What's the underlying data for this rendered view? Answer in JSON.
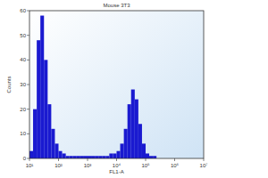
{
  "chart_data": {
    "type": "histogram",
    "title": "Mouse 3T3",
    "x_label": "FL1-A",
    "y_label": "Counts",
    "bins": [
      10,
      13.3,
      17.8,
      23.7,
      31.6,
      42.2,
      56.2,
      75,
      100,
      133,
      178,
      237,
      316,
      422,
      562,
      750,
      1000,
      1330,
      1780,
      2370,
      3160,
      4220,
      5620,
      7500,
      10000,
      13300,
      17800,
      23700,
      31600,
      42200,
      56200,
      75000,
      100000,
      133000,
      178000,
      237000,
      316000,
      422000,
      562000,
      750000,
      1000000,
      1330000,
      1780000,
      2370000,
      3160000,
      4220000,
      5620000,
      7500000,
      10000000
    ],
    "values": [
      3,
      20,
      48,
      58,
      40,
      22,
      12,
      6,
      3,
      2,
      1,
      1,
      1,
      1,
      1,
      1,
      1,
      1,
      1,
      1,
      1,
      1,
      2,
      2,
      3,
      6,
      12,
      22,
      28,
      24,
      14,
      6,
      2,
      1,
      1,
      0,
      0,
      0,
      0,
      0,
      0,
      0,
      0,
      0,
      0,
      0,
      0,
      0
    ],
    "color": "#1a1ad0",
    "log": "x",
    "grid": false,
    "xlim": [
      10,
      10000000
    ],
    "xticks": [
      {
        "value": 10,
        "label": "10¹"
      },
      {
        "value": 100,
        "label": "10²"
      },
      {
        "value": 1000,
        "label": "10³"
      },
      {
        "value": 10000,
        "label": "10⁴"
      },
      {
        "value": 100000,
        "label": "10⁵"
      },
      {
        "value": 1000000,
        "label": "10⁶"
      },
      {
        "value": 10000000,
        "label": "10⁷"
      }
    ],
    "ylim": [
      0,
      60
    ],
    "yticks": [
      0,
      10,
      20,
      30,
      40,
      50,
      60
    ]
  }
}
